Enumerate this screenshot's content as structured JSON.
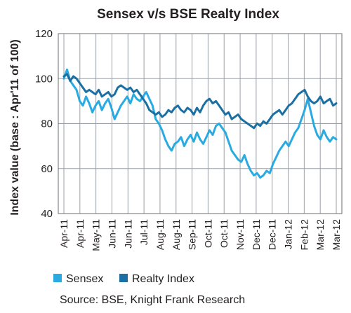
{
  "chart_data": {
    "type": "line",
    "title": "Sensex v/s BSE  Realty Index",
    "ylabel": "Index value (base : Apr'11 of 100)",
    "xlabel": "",
    "ylim": [
      40,
      120
    ],
    "yticks": [
      40,
      60,
      80,
      100,
      120
    ],
    "x_tick_labels": [
      "Apr-11",
      "Apr-11",
      "May-11",
      "Jun-11",
      "Jun-11",
      "Jul-11",
      "Aug-11",
      "Aug-11",
      "Sep-11",
      "Oct-11",
      "Oct-11",
      "Nov-11",
      "Dec-11",
      "Dec-11",
      "Jan-12",
      "Feb-12",
      "Mar-12",
      "Mar-12"
    ],
    "grid": true,
    "legend_position": "bottom",
    "source": "Source: BSE, Knight Frank Research",
    "series": [
      {
        "name": "Sensex",
        "color": "#29abe2",
        "values": [
          100,
          104,
          99,
          97,
          95,
          90,
          88,
          92,
          89,
          85,
          88,
          90,
          86,
          89,
          91,
          87,
          82,
          85,
          88,
          90,
          92,
          89,
          93,
          91,
          90,
          92,
          94,
          91,
          88,
          82,
          80,
          77,
          73,
          70,
          68,
          71,
          72,
          74,
          70,
          73,
          75,
          72,
          76,
          73,
          71,
          74,
          77,
          75,
          79,
          80,
          78,
          76,
          72,
          68,
          66,
          64,
          63,
          66,
          62,
          59,
          57,
          58,
          56,
          57,
          59,
          58,
          62,
          65,
          68,
          70,
          72,
          70,
          73,
          76,
          78,
          82,
          86,
          91,
          85,
          79,
          75,
          73,
          77,
          74,
          72,
          74,
          73
        ]
      },
      {
        "name": "Realty Index",
        "color": "#1a6fa3",
        "values": [
          101,
          102,
          99,
          101,
          100,
          98,
          96,
          94,
          95,
          94,
          93,
          95,
          92,
          93,
          94,
          92,
          93,
          96,
          97,
          96,
          95,
          96,
          94,
          95,
          93,
          91,
          89,
          86,
          85,
          84,
          85,
          83,
          84,
          86,
          85,
          87,
          88,
          86,
          85,
          87,
          86,
          84,
          87,
          85,
          88,
          90,
          91,
          89,
          90,
          88,
          86,
          84,
          85,
          82,
          83,
          84,
          82,
          81,
          80,
          79,
          78,
          80,
          79,
          81,
          80,
          82,
          84,
          85,
          86,
          84,
          86,
          88,
          89,
          91,
          93,
          94,
          95,
          92,
          90,
          89,
          90,
          92,
          89,
          90,
          91,
          88,
          89
        ]
      }
    ]
  }
}
